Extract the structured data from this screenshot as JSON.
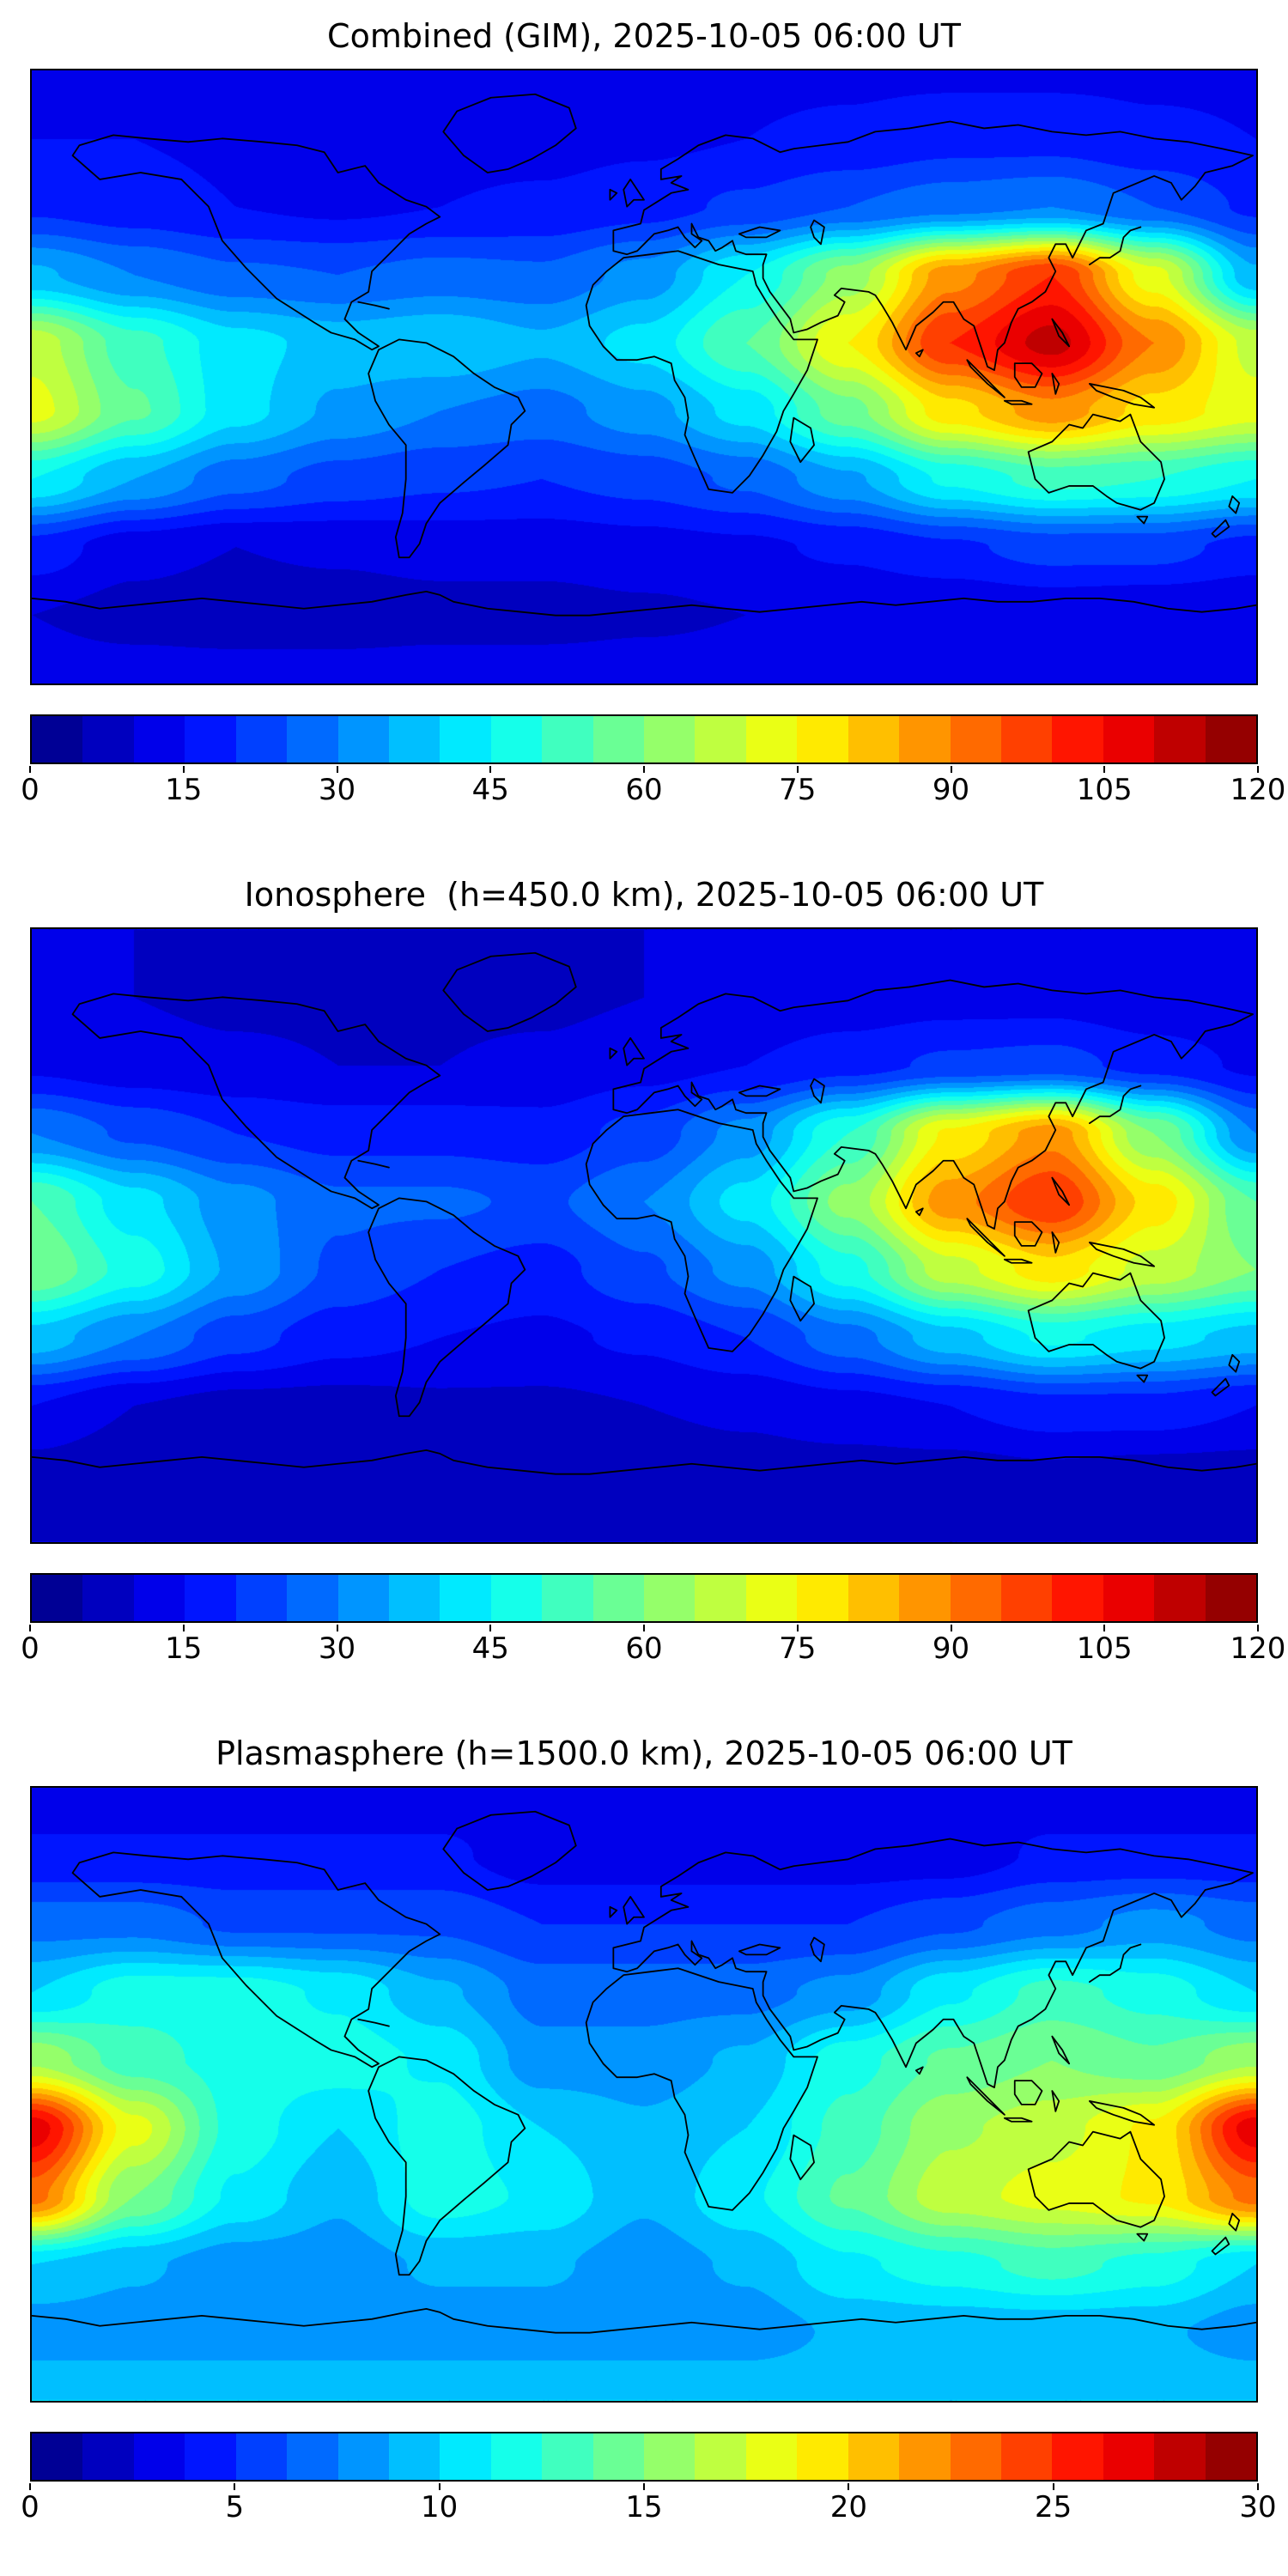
{
  "figure": {
    "background": "#ffffff",
    "text_color": "#000000",
    "frame_color": "#000000"
  },
  "chart_data": [
    {
      "type": "heatmap",
      "title": "Combined (GIM), 2025-10-05 06:00 UT",
      "colormap": "jet",
      "vmin": 0,
      "vmax": 120,
      "levels": 24,
      "colorbar_ticks": [
        0,
        15,
        30,
        45,
        60,
        75,
        90,
        105,
        120
      ],
      "legend_position": "bottom-horizontal-colorbar",
      "x_axis": "longitude_deg",
      "y_axis": "latitude_deg",
      "grid": {
        "lons": [
          -180,
          -150,
          -120,
          -90,
          -60,
          -30,
          0,
          30,
          60,
          90,
          120,
          150,
          180
        ],
        "lats": [
          90,
          70,
          50,
          30,
          10,
          -10,
          -30,
          -50,
          -70,
          -90
        ],
        "values": [
          [
            14,
            14,
            14,
            14,
            14,
            14,
            14,
            14,
            14,
            14,
            14,
            14,
            14
          ],
          [
            15,
            15,
            14,
            13,
            13,
            13,
            14,
            15,
            16,
            18,
            18,
            16,
            15
          ],
          [
            19,
            17,
            15,
            14,
            15,
            16,
            18,
            21,
            25,
            28,
            30,
            25,
            19
          ],
          [
            36,
            30,
            26,
            25,
            27,
            26,
            32,
            45,
            62,
            88,
            100,
            72,
            36
          ],
          [
            68,
            52,
            42,
            38,
            40,
            36,
            42,
            55,
            75,
            100,
            112,
            90,
            68
          ],
          [
            72,
            56,
            42,
            34,
            30,
            28,
            33,
            42,
            58,
            78,
            88,
            78,
            72
          ],
          [
            45,
            35,
            27,
            23,
            21,
            20,
            22,
            26,
            34,
            46,
            52,
            50,
            45
          ],
          [
            18,
            12,
            10,
            11,
            12,
            12,
            13,
            14,
            16,
            19,
            22,
            22,
            18
          ],
          [
            10,
            8,
            7,
            7,
            8,
            8,
            9,
            10,
            10,
            10,
            11,
            10,
            10
          ],
          [
            13,
            13,
            13,
            13,
            13,
            13,
            13,
            13,
            13,
            13,
            13,
            13,
            13
          ]
        ]
      }
    },
    {
      "type": "heatmap",
      "title": "Ionosphere  (h=450.0 km), 2025-10-05 06:00 UT",
      "colormap": "jet",
      "vmin": 0,
      "vmax": 120,
      "levels": 24,
      "colorbar_ticks": [
        0,
        15,
        30,
        45,
        60,
        75,
        90,
        105,
        120
      ],
      "legend_position": "bottom-horizontal-colorbar",
      "x_axis": "longitude_deg",
      "y_axis": "latitude_deg",
      "grid": {
        "lons": [
          -180,
          -150,
          -120,
          -90,
          -60,
          -30,
          0,
          30,
          60,
          90,
          120,
          150,
          180
        ],
        "lats": [
          90,
          70,
          50,
          30,
          10,
          -10,
          -30,
          -50,
          -70,
          -90
        ],
        "values": [
          [
            10,
            10,
            10,
            10,
            10,
            10,
            10,
            10,
            10,
            10,
            10,
            10,
            10
          ],
          [
            11,
            10,
            9,
            9,
            9,
            9,
            10,
            11,
            12,
            13,
            13,
            11,
            11
          ],
          [
            14,
            12,
            11,
            10,
            10,
            11,
            13,
            15,
            18,
            21,
            22,
            18,
            14
          ],
          [
            30,
            24,
            20,
            18,
            18,
            17,
            22,
            32,
            50,
            76,
            88,
            60,
            30
          ],
          [
            55,
            42,
            32,
            26,
            26,
            24,
            30,
            42,
            62,
            88,
            100,
            78,
            55
          ],
          [
            60,
            48,
            34,
            24,
            20,
            18,
            24,
            32,
            48,
            68,
            78,
            68,
            60
          ],
          [
            38,
            30,
            22,
            17,
            15,
            14,
            16,
            20,
            28,
            38,
            46,
            42,
            38
          ],
          [
            15,
            10,
            8,
            8,
            9,
            9,
            10,
            11,
            13,
            15,
            18,
            18,
            15
          ],
          [
            8,
            6,
            5,
            5,
            6,
            6,
            7,
            8,
            8,
            8,
            9,
            8,
            8
          ],
          [
            10,
            10,
            10,
            10,
            10,
            10,
            10,
            10,
            10,
            10,
            10,
            10,
            10
          ]
        ]
      }
    },
    {
      "type": "heatmap",
      "title": "Plasmasphere (h=1500.0 km), 2025-10-05 06:00 UT",
      "colormap": "jet",
      "vmin": 0,
      "vmax": 30,
      "levels": 24,
      "colorbar_ticks": [
        0,
        5,
        10,
        15,
        20,
        25,
        30
      ],
      "legend_position": "bottom-horizontal-colorbar",
      "x_axis": "longitude_deg",
      "y_axis": "latitude_deg",
      "grid": {
        "lons": [
          -180,
          -150,
          -120,
          -90,
          -60,
          -30,
          0,
          30,
          60,
          90,
          120,
          150,
          180
        ],
        "lats": [
          90,
          70,
          50,
          30,
          10,
          -10,
          -30,
          -50,
          -70,
          -90
        ],
        "values": [
          [
            3,
            3,
            3,
            3,
            3,
            3,
            3,
            3,
            3,
            3,
            3,
            3,
            3
          ],
          [
            4,
            4,
            4,
            4,
            4,
            3,
            3,
            3,
            3,
            3,
            4,
            4,
            4
          ],
          [
            7,
            7,
            6,
            6,
            6,
            5,
            5,
            5,
            5,
            6,
            7,
            8,
            7
          ],
          [
            10,
            12,
            12,
            11,
            9,
            7,
            7,
            7,
            8,
            11,
            13,
            12,
            10
          ],
          [
            16,
            13,
            12,
            12,
            11,
            8,
            8,
            9,
            12,
            14,
            15,
            14,
            16
          ],
          [
            27,
            18,
            12,
            10,
            12,
            10,
            9,
            10,
            13,
            16,
            17,
            19,
            27
          ],
          [
            23,
            15,
            11,
            9,
            12,
            11,
            9,
            11,
            14,
            17,
            18,
            19,
            23
          ],
          [
            10,
            9,
            8,
            8,
            9,
            9,
            8,
            9,
            11,
            12,
            13,
            12,
            10
          ],
          [
            8,
            8,
            8,
            8,
            8,
            8,
            8,
            8,
            9,
            9,
            9,
            9,
            8
          ],
          [
            10,
            10,
            10,
            10,
            10,
            10,
            10,
            10,
            10,
            10,
            10,
            10,
            10
          ]
        ]
      }
    }
  ]
}
